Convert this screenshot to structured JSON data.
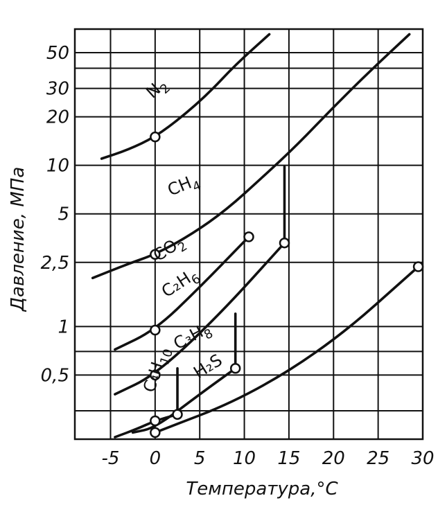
{
  "chart_data": {
    "type": "line",
    "title": "",
    "xlabel": "Температура,°С",
    "ylabel": "Давление, МПа",
    "y_scale": "log",
    "xlim": [
      -9,
      30
    ],
    "ylim": [
      0.2,
      70
    ],
    "grid": true,
    "x_ticks": [
      "-5",
      "0",
      "5",
      "10",
      "15",
      "20",
      "25",
      "30"
    ],
    "x_tick_values": [
      -5,
      0,
      5,
      10,
      15,
      20,
      25,
      30
    ],
    "y_ticks": [
      "50",
      "30",
      "20",
      "10",
      "5",
      "2,5",
      "1",
      "0,5"
    ],
    "y_tick_values": [
      50,
      30,
      20,
      10,
      5,
      2.5,
      1,
      0.5
    ],
    "series": [
      {
        "name": "N2",
        "label_main": "N",
        "label_sub": "2",
        "x": [
          -6,
          -3,
          0,
          3,
          6,
          9,
          12.8
        ],
        "y": [
          11,
          12.5,
          15,
          20,
          28,
          42,
          65
        ],
        "points": [
          {
            "x": 0,
            "y": 15
          }
        ]
      },
      {
        "name": "CH4",
        "label_main": "CH",
        "label_sub": "4",
        "x": [
          -7,
          -3,
          0,
          4,
          8,
          12,
          16,
          20,
          24,
          28.5
        ],
        "y": [
          2.0,
          2.45,
          2.8,
          3.7,
          5.3,
          8.4,
          13.5,
          23,
          38,
          65
        ],
        "points": [
          {
            "x": 0,
            "y": 2.8
          }
        ]
      },
      {
        "name": "CO2",
        "label_main": "CO",
        "label_sub": "2",
        "x": [
          -4.5,
          0,
          5,
          10.5
        ],
        "y": [
          0.72,
          0.95,
          1.75,
          3.6
        ],
        "points": [
          {
            "x": 0,
            "y": 0.95
          },
          {
            "x": 10.5,
            "y": 3.6
          }
        ]
      },
      {
        "name": "C2H6",
        "label_main": "C₂H",
        "label_sub": "6",
        "x": [
          -4.5,
          0,
          7,
          14.5
        ],
        "y": [
          0.38,
          0.5,
          1.15,
          3.3
        ],
        "points": [
          {
            "x": 0,
            "y": 0.5
          },
          {
            "x": 14.5,
            "y": 3.3
          }
        ],
        "vertical": {
          "x": 14.5,
          "y_from": 3.3,
          "y_to": 9.8
        }
      },
      {
        "name": "C3H8",
        "label_main": "C₃H",
        "label_sub": "8",
        "x": [
          -2.5,
          0,
          5,
          9
        ],
        "y": [
          0.22,
          0.235,
          0.38,
          0.55
        ],
        "points": [
          {
            "x": 9,
            "y": 0.55
          }
        ],
        "vertical": {
          "x": 9,
          "y_from": 0.55,
          "y_to": 1.2
        }
      },
      {
        "name": "C4H10",
        "label_main": "C₄H",
        "label_sub": "10",
        "x": [
          -4.5,
          -2,
          0,
          2.5
        ],
        "y": [
          0.206,
          0.232,
          0.26,
          0.285
        ],
        "points": [
          {
            "x": 0,
            "y": 0.26
          },
          {
            "x": 2.5,
            "y": 0.285
          }
        ],
        "vertical": {
          "x": 2.5,
          "y_from": 0.285,
          "y_to": 0.55
        }
      },
      {
        "name": "H2S",
        "label_main": "H₂S",
        "label_sub": "",
        "x": [
          0,
          10,
          20,
          29.5
        ],
        "y": [
          0.22,
          0.36,
          0.8,
          2.35
        ],
        "points": [
          {
            "x": 0,
            "y": 0.22
          },
          {
            "x": 29.5,
            "y": 2.35
          }
        ]
      }
    ]
  }
}
